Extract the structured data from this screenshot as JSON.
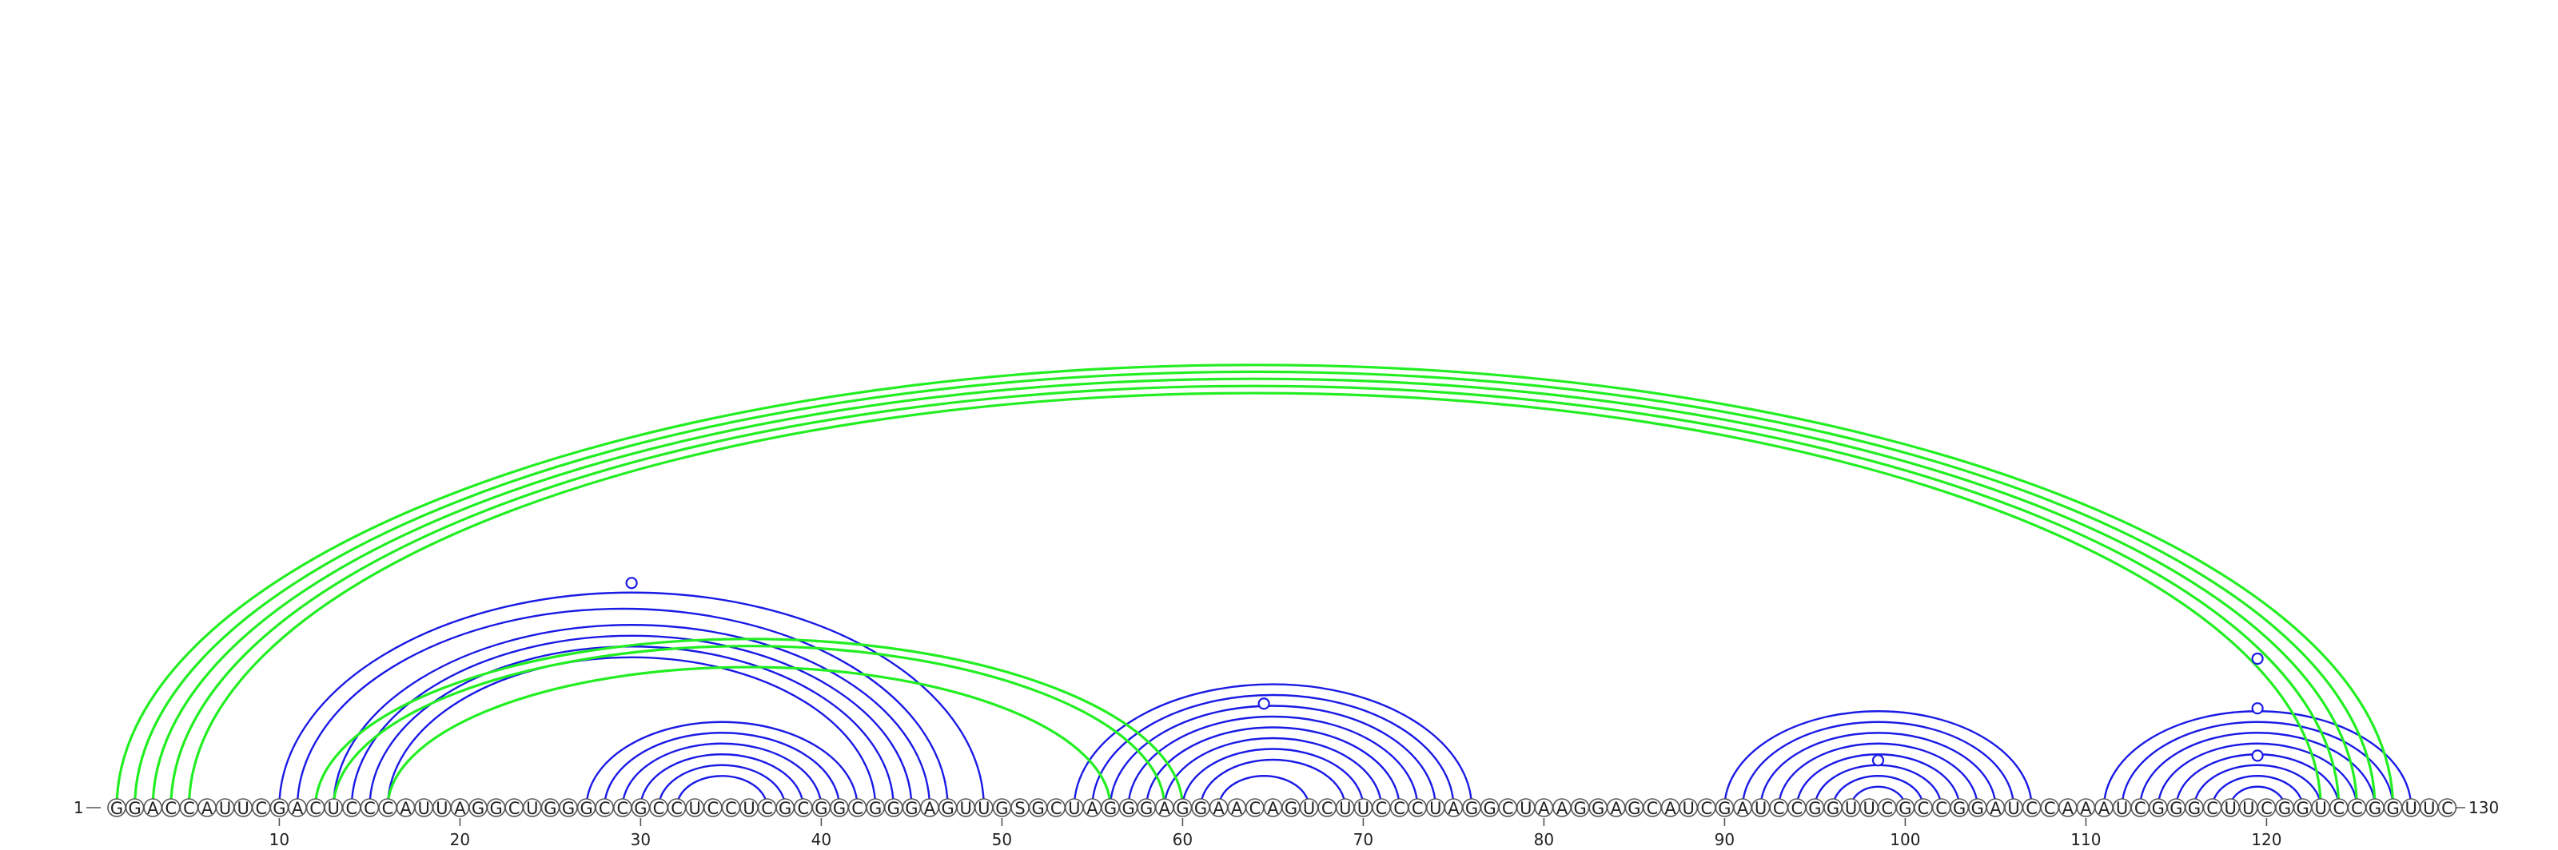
{
  "sequence": "GGACCAUUCGACUCCCAUUAGGCUGGGCCGCCUCCUCGCGGCGGGAGUUGSGCUAGGGAGGAACAGUCUUCCCUAGGCUAAGGAGCAUCGAUCCGGUUCGCCGGAUCCAAAUCGGGCUUCGGUCCGGUUC",
  "start_label": "1",
  "end_label": "130",
  "ticks": [
    "10",
    "20",
    "30",
    "40",
    "50",
    "60",
    "70",
    "80",
    "90",
    "100",
    "110",
    "120"
  ],
  "colors": {
    "nested": "#1a1ae6",
    "pseudoknot": "#22ee22",
    "circle_stroke": "#555555"
  },
  "chart_data": {
    "type": "arc",
    "length": 130,
    "pairs": [
      {
        "i": 10,
        "j": 49,
        "set": "nested"
      },
      {
        "i": 11,
        "j": 47,
        "set": "nested"
      },
      {
        "i": 13,
        "j": 46,
        "set": "nested"
      },
      {
        "i": 14,
        "j": 45,
        "set": "nested"
      },
      {
        "i": 15,
        "j": 44,
        "set": "nested"
      },
      {
        "i": 16,
        "j": 43,
        "set": "nested"
      },
      {
        "i": 27,
        "j": 42,
        "set": "nested"
      },
      {
        "i": 28,
        "j": 41,
        "set": "nested"
      },
      {
        "i": 29,
        "j": 40,
        "set": "nested"
      },
      {
        "i": 30,
        "j": 39,
        "set": "nested"
      },
      {
        "i": 31,
        "j": 38,
        "set": "nested"
      },
      {
        "i": 32,
        "j": 37,
        "set": "nested"
      },
      {
        "i": 54,
        "j": 76,
        "set": "nested"
      },
      {
        "i": 55,
        "j": 75,
        "set": "nested"
      },
      {
        "i": 56,
        "j": 74,
        "set": "nested"
      },
      {
        "i": 57,
        "j": 73,
        "set": "nested"
      },
      {
        "i": 58,
        "j": 72,
        "set": "nested"
      },
      {
        "i": 59,
        "j": 71,
        "set": "nested"
      },
      {
        "i": 60,
        "j": 70,
        "set": "nested"
      },
      {
        "i": 61,
        "j": 69,
        "set": "nested"
      },
      {
        "i": 62,
        "j": 67,
        "set": "nested"
      },
      {
        "i": 90,
        "j": 107,
        "set": "nested"
      },
      {
        "i": 91,
        "j": 106,
        "set": "nested"
      },
      {
        "i": 92,
        "j": 105,
        "set": "nested"
      },
      {
        "i": 93,
        "j": 104,
        "set": "nested"
      },
      {
        "i": 94,
        "j": 103,
        "set": "nested"
      },
      {
        "i": 95,
        "j": 102,
        "set": "nested"
      },
      {
        "i": 96,
        "j": 101,
        "set": "nested"
      },
      {
        "i": 97,
        "j": 100,
        "set": "nested"
      },
      {
        "i": 111,
        "j": 128,
        "set": "nested"
      },
      {
        "i": 112,
        "j": 127,
        "set": "nested"
      },
      {
        "i": 113,
        "j": 126,
        "set": "nested"
      },
      {
        "i": 114,
        "j": 125,
        "set": "nested"
      },
      {
        "i": 115,
        "j": 124,
        "set": "nested"
      },
      {
        "i": 116,
        "j": 123,
        "set": "nested"
      },
      {
        "i": 117,
        "j": 122,
        "set": "nested"
      },
      {
        "i": 118,
        "j": 121,
        "set": "nested"
      },
      {
        "i": 1,
        "j": 127,
        "set": "pseudoknot"
      },
      {
        "i": 2,
        "j": 126,
        "set": "pseudoknot"
      },
      {
        "i": 3,
        "j": 125,
        "set": "pseudoknot"
      },
      {
        "i": 4,
        "j": 124,
        "set": "pseudoknot"
      },
      {
        "i": 5,
        "j": 123,
        "set": "pseudoknot"
      },
      {
        "i": 12,
        "j": 60,
        "set": "pseudoknot"
      },
      {
        "i": 13,
        "j": 59,
        "set": "pseudoknot"
      },
      {
        "i": 16,
        "j": 56,
        "set": "pseudoknot"
      }
    ],
    "markers": [
      {
        "pos": 29.5,
        "level": 0.95
      },
      {
        "pos": 64.5,
        "level": 0.44
      },
      {
        "pos": 98.5,
        "level": 0.2
      },
      {
        "pos": 119.5,
        "level": 0.63
      },
      {
        "pos": 119.5,
        "level": 0.42
      },
      {
        "pos": 119.5,
        "level": 0.22
      }
    ]
  }
}
